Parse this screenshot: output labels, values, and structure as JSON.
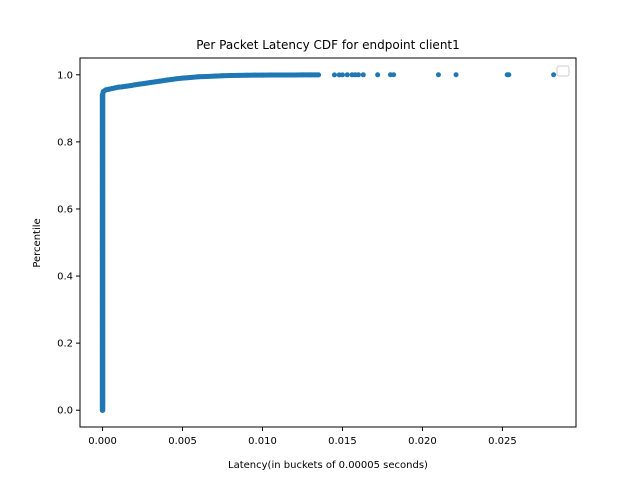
{
  "chart_data": {
    "type": "scatter",
    "title": "Per Packet Latency CDF for endpoint client1",
    "xlabel": "Latency(in buckets of 0.00005 seconds)",
    "ylabel": "Percentile",
    "xlim": [
      -0.00141,
      0.0296
    ],
    "ylim": [
      -0.05,
      1.05
    ],
    "xticks": [
      0.0,
      0.005,
      0.01,
      0.015,
      0.02,
      0.025
    ],
    "xtick_labels": [
      "0.000",
      "0.005",
      "0.010",
      "0.015",
      "0.020",
      "0.025"
    ],
    "yticks": [
      0.0,
      0.2,
      0.4,
      0.6,
      0.8,
      1.0
    ],
    "ytick_labels": [
      "0.0",
      "0.2",
      "0.4",
      "0.6",
      "0.8",
      "1.0"
    ],
    "grid": false,
    "legend": {
      "placement": "top-right",
      "entries": []
    },
    "series": [
      {
        "color": "#1f77b4",
        "marker": "circle",
        "points": [
          [
            0.0,
            0.0
          ],
          [
            0.0,
            0.02
          ],
          [
            0.0,
            0.05
          ],
          [
            0.0,
            0.08
          ],
          [
            0.0,
            0.1
          ],
          [
            0.0,
            0.12
          ],
          [
            0.0,
            0.15
          ],
          [
            0.0,
            0.18
          ],
          [
            0.0,
            0.2
          ],
          [
            0.0,
            0.22
          ],
          [
            0.0,
            0.25
          ],
          [
            0.0,
            0.28
          ],
          [
            0.0,
            0.3
          ],
          [
            0.0,
            0.32
          ],
          [
            0.0,
            0.35
          ],
          [
            0.0,
            0.38
          ],
          [
            0.0,
            0.4
          ],
          [
            0.0,
            0.42
          ],
          [
            0.0,
            0.45
          ],
          [
            0.0,
            0.48
          ],
          [
            0.0,
            0.5
          ],
          [
            0.0,
            0.52
          ],
          [
            0.0,
            0.55
          ],
          [
            0.0,
            0.58
          ],
          [
            0.0,
            0.6
          ],
          [
            0.0,
            0.62
          ],
          [
            0.0,
            0.65
          ],
          [
            0.0,
            0.68
          ],
          [
            0.0,
            0.7
          ],
          [
            0.0,
            0.72
          ],
          [
            0.0,
            0.75
          ],
          [
            0.0,
            0.78
          ],
          [
            0.0,
            0.8
          ],
          [
            0.0,
            0.82
          ],
          [
            0.0,
            0.85
          ],
          [
            0.0,
            0.88
          ],
          [
            0.0,
            0.9
          ],
          [
            0.0,
            0.92
          ],
          [
            0.0,
            0.94
          ],
          [
            5e-05,
            0.95
          ],
          [
            0.0002,
            0.955
          ],
          [
            0.0004,
            0.957
          ],
          [
            0.0006,
            0.959
          ],
          [
            0.0008,
            0.961
          ],
          [
            0.001,
            0.963
          ],
          [
            0.0012,
            0.964
          ],
          [
            0.0015,
            0.966
          ],
          [
            0.0018,
            0.968
          ],
          [
            0.002,
            0.97
          ],
          [
            0.0023,
            0.972
          ],
          [
            0.0026,
            0.974
          ],
          [
            0.003,
            0.977
          ],
          [
            0.0033,
            0.979
          ],
          [
            0.0036,
            0.981
          ],
          [
            0.004,
            0.984
          ],
          [
            0.0043,
            0.986
          ],
          [
            0.0046,
            0.988
          ],
          [
            0.005,
            0.99
          ],
          [
            0.0055,
            0.992
          ],
          [
            0.006,
            0.994
          ],
          [
            0.0065,
            0.995
          ],
          [
            0.007,
            0.996
          ],
          [
            0.0075,
            0.997
          ],
          [
            0.008,
            0.998
          ],
          [
            0.0085,
            0.9983
          ],
          [
            0.009,
            0.9986
          ],
          [
            0.0095,
            0.9988
          ],
          [
            0.01,
            0.999
          ],
          [
            0.0105,
            0.9992
          ],
          [
            0.011,
            0.9993
          ],
          [
            0.0115,
            0.9994
          ],
          [
            0.012,
            0.9995
          ],
          [
            0.0125,
            0.9996
          ],
          [
            0.013,
            0.9997
          ],
          [
            0.0135,
            0.9997
          ],
          [
            0.0145,
            0.9998
          ],
          [
            0.0148,
            0.9998
          ],
          [
            0.015,
            0.9998
          ],
          [
            0.0153,
            0.9999
          ],
          [
            0.0156,
            0.9999
          ],
          [
            0.0158,
            0.9999
          ],
          [
            0.016,
            0.9999
          ],
          [
            0.0163,
            0.9999
          ],
          [
            0.0172,
            0.9999
          ],
          [
            0.018,
            1.0
          ],
          [
            0.0182,
            1.0
          ],
          [
            0.021,
            1.0
          ],
          [
            0.0221,
            1.0
          ],
          [
            0.0253,
            1.0
          ],
          [
            0.0254,
            1.0
          ],
          [
            0.0282,
            1.0
          ]
        ]
      }
    ]
  }
}
